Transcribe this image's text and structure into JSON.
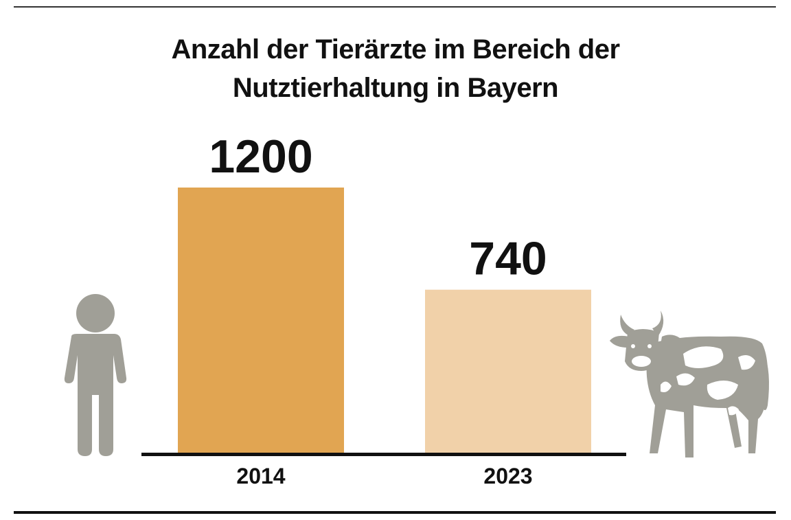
{
  "chart_data": {
    "type": "bar",
    "title_lines": [
      "Anzahl der Tierärzte im Bereich der",
      "Nutztierhaltung in Bayern"
    ],
    "categories": [
      "2014",
      "2023"
    ],
    "values": [
      1200,
      740
    ],
    "value_labels": [
      "1200",
      "740"
    ],
    "colors": [
      "#e1a552",
      "#f1d1a9"
    ],
    "ylim": [
      0,
      1200
    ],
    "grid": false,
    "legend": "none"
  },
  "icons": {
    "left": "person-icon",
    "right": "cow-icon",
    "icon_color": "#a09f97"
  }
}
